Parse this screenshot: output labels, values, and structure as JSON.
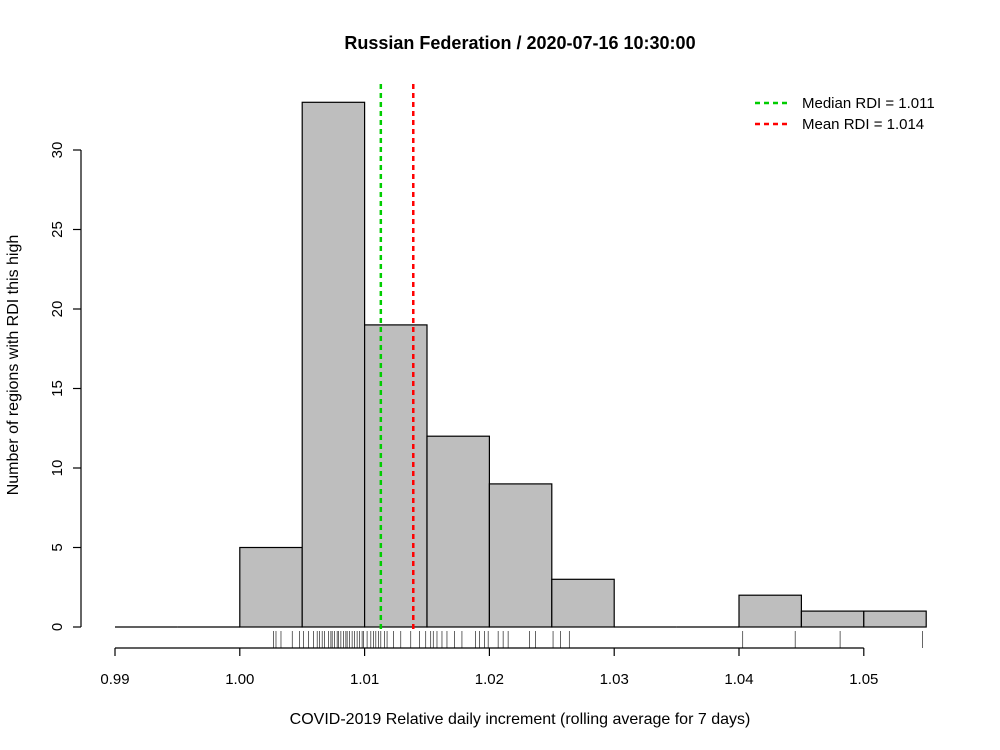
{
  "chart_data": {
    "type": "bar",
    "title": "Russian Federation /  2020-07-16 10:30:00",
    "xlabel": "COVID-2019 Relative daily increment (rolling average for 7 days)",
    "ylabel": "Number of regions with RDI this high",
    "xlim": [
      0.99,
      1.055
    ],
    "ylim": [
      0,
      33
    ],
    "x_ticks": [
      "0.99",
      "1.00",
      "1.01",
      "1.02",
      "1.03",
      "1.04",
      "1.05"
    ],
    "x_tick_values": [
      0.99,
      1.0,
      1.01,
      1.02,
      1.03,
      1.04,
      1.05
    ],
    "y_ticks": [
      "0",
      "5",
      "10",
      "15",
      "20",
      "25",
      "30"
    ],
    "y_tick_values": [
      0,
      5,
      10,
      15,
      20,
      25,
      30
    ],
    "bins": [
      {
        "from": 0.99,
        "to": 0.995,
        "count": 0
      },
      {
        "from": 0.995,
        "to": 1.0,
        "count": 0
      },
      {
        "from": 1.0,
        "to": 1.005,
        "count": 5
      },
      {
        "from": 1.005,
        "to": 1.01,
        "count": 33
      },
      {
        "from": 1.01,
        "to": 1.015,
        "count": 19
      },
      {
        "from": 1.015,
        "to": 1.02,
        "count": 12
      },
      {
        "from": 1.02,
        "to": 1.025,
        "count": 9
      },
      {
        "from": 1.025,
        "to": 1.03,
        "count": 3
      },
      {
        "from": 1.03,
        "to": 1.035,
        "count": 0
      },
      {
        "from": 1.035,
        "to": 1.04,
        "count": 0
      },
      {
        "from": 1.04,
        "to": 1.045,
        "count": 2
      },
      {
        "from": 1.045,
        "to": 1.05,
        "count": 1
      },
      {
        "from": 1.05,
        "to": 1.055,
        "count": 1
      }
    ],
    "bar_color": "#bebebe",
    "rug": [
      1.0027,
      1.0029,
      1.0033,
      1.0042,
      1.0048,
      1.0051,
      1.0055,
      1.0059,
      1.0062,
      1.0064,
      1.0066,
      1.0068,
      1.0071,
      1.0073,
      1.0074,
      1.0076,
      1.0078,
      1.0079,
      1.0081,
      1.0083,
      1.0085,
      1.0086,
      1.0088,
      1.009,
      1.0092,
      1.0094,
      1.0096,
      1.0098,
      1.0099,
      1.0102,
      1.0105,
      1.0107,
      1.0109,
      1.0111,
      1.0113,
      1.0116,
      1.0118,
      1.0123,
      1.0129,
      1.0137,
      1.0144,
      1.0149,
      1.0153,
      1.0155,
      1.0158,
      1.0162,
      1.0166,
      1.0172,
      1.0178,
      1.0189,
      1.0192,
      1.0196,
      1.0199,
      1.0207,
      1.0211,
      1.0215,
      1.0232,
      1.0237,
      1.0251,
      1.0257,
      1.0264,
      1.0403,
      1.0445,
      1.0481,
      1.0547
    ],
    "reference_lines": [
      {
        "name": "Median RDI = 1.011",
        "value": 1.0113,
        "color": "#00cd00"
      },
      {
        "name": "Mean RDI = 1.014",
        "value": 1.0139,
        "color": "#ff0000"
      }
    ],
    "legend_placement": "top-right",
    "grid": false
  }
}
